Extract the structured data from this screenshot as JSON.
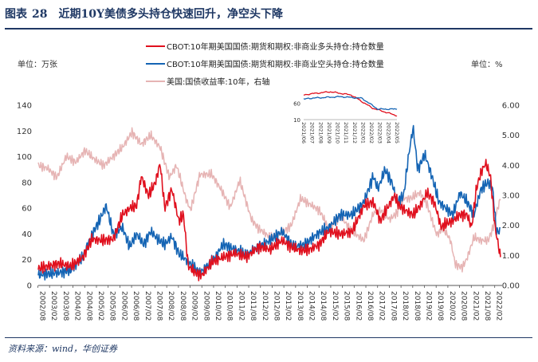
{
  "header": {
    "fig_label": "图表",
    "fig_number": "28",
    "title": "近期10Y美债多头持仓快速回升，净空头下降"
  },
  "footer": {
    "source": "资料来源：wind，华创证券"
  },
  "chart_data": {
    "type": "line",
    "left_unit": "单位：万张",
    "right_unit": "单位：%",
    "ylim_left": [
      0,
      140
    ],
    "ylim_right": [
      0,
      6
    ],
    "yticks_left": [
      "0",
      "20",
      "40",
      "60",
      "80",
      "100",
      "120",
      "140"
    ],
    "yticks_right": [
      "0.00",
      "1.00",
      "2.00",
      "3.00",
      "4.00",
      "5.00",
      "6.00"
    ],
    "xticks": [
      "2002/08",
      "2003/02",
      "2003/08",
      "2004/02",
      "2004/08",
      "2005/02",
      "2005/08",
      "2006/02",
      "2006/08",
      "2007/02",
      "2007/08",
      "2008/02",
      "2008/08",
      "2009/02",
      "2009/08",
      "2010/02",
      "2010/08",
      "2011/02",
      "2011/08",
      "2012/02",
      "2012/08",
      "2013/02",
      "2013/08",
      "2014/02",
      "2014/08",
      "2015/02",
      "2015/08",
      "2016/02",
      "2016/08",
      "2017/02",
      "2017/08",
      "2018/02",
      "2018/08",
      "2019/02",
      "2019/08",
      "2020/02",
      "2020/08",
      "2021/02",
      "2021/08",
      "2022/02"
    ],
    "colors": {
      "long": "#e0101e",
      "short": "#1464b4",
      "yield": "#e6b4b4"
    },
    "series": [
      {
        "name": "CBOT:10年期美国国债:期货和期权:非商业多头持仓:持仓数量",
        "axis": "left",
        "color": "long",
        "x": [
          2002.6,
          2003.0,
          2003.5,
          2004.0,
          2004.5,
          2004.9,
          2005.3,
          2005.8,
          2006.2,
          2006.5,
          2006.8,
          2007.0,
          2007.3,
          2007.6,
          2007.8,
          2008.0,
          2008.3,
          2008.6,
          2008.8,
          2009.0,
          2009.3,
          2009.6,
          2010.0,
          2010.5,
          2011.0,
          2011.5,
          2012.0,
          2012.5,
          2013.0,
          2013.4,
          2013.8,
          2014.2,
          2014.6,
          2015.0,
          2015.5,
          2016.0,
          2016.5,
          2016.9,
          2017.2,
          2017.5,
          2017.8,
          2018.0,
          2018.3,
          2018.6,
          2018.9,
          2019.2,
          2019.5,
          2019.8,
          2020.0,
          2020.3,
          2020.6,
          2020.9,
          2021.1,
          2021.3,
          2021.5,
          2021.7,
          2021.9,
          2022.1,
          2022.25,
          2022.33
        ],
        "values": [
          13,
          15,
          17,
          15,
          22,
          36,
          35,
          36,
          55,
          60,
          62,
          85,
          70,
          80,
          95,
          60,
          75,
          50,
          55,
          15,
          10,
          8,
          18,
          22,
          25,
          22,
          30,
          28,
          35,
          30,
          27,
          28,
          32,
          42,
          40,
          42,
          62,
          65,
          50,
          60,
          70,
          62,
          58,
          55,
          62,
          72,
          65,
          45,
          48,
          50,
          55,
          55,
          45,
          75,
          88,
          95,
          85,
          45,
          30,
          22
        ]
      },
      {
        "name": "CBOT:10年期美国国债:期货和期权:非商业空头持仓:持仓数量",
        "axis": "left",
        "color": "short",
        "x": [
          2002.6,
          2003.0,
          2003.5,
          2004.0,
          2004.5,
          2004.9,
          2005.2,
          2005.5,
          2005.8,
          2006.2,
          2006.5,
          2006.8,
          2007.1,
          2007.4,
          2007.7,
          2008.0,
          2008.3,
          2008.6,
          2008.9,
          2009.2,
          2009.5,
          2010.0,
          2010.5,
          2011.0,
          2011.5,
          2012.0,
          2012.5,
          2013.0,
          2013.5,
          2014.0,
          2014.5,
          2015.0,
          2015.5,
          2016.0,
          2016.5,
          2016.9,
          2017.1,
          2017.4,
          2017.7,
          2017.9,
          2018.2,
          2018.4,
          2018.6,
          2018.8,
          2019.1,
          2019.4,
          2019.7,
          2020.0,
          2020.3,
          2020.6,
          2020.9,
          2021.2,
          2021.5,
          2021.8,
          2022.0,
          2022.15,
          2022.3
        ],
        "values": [
          8,
          9,
          10,
          12,
          22,
          40,
          50,
          62,
          40,
          45,
          30,
          40,
          32,
          42,
          36,
          32,
          38,
          25,
          20,
          15,
          10,
          18,
          32,
          28,
          24,
          30,
          35,
          42,
          30,
          32,
          40,
          45,
          55,
          55,
          65,
          85,
          75,
          90,
          80,
          65,
          70,
          100,
          123,
          90,
          102,
          85,
          65,
          60,
          55,
          72,
          65,
          55,
          75,
          80,
          75,
          42,
          42
        ]
      },
      {
        "name": "美国:国债收益率:10年，右轴",
        "axis": "right",
        "color": "yield",
        "x": [
          2002.6,
          2003.0,
          2003.4,
          2003.8,
          2004.2,
          2004.6,
          2005.0,
          2005.4,
          2005.8,
          2006.2,
          2006.6,
          2007.0,
          2007.4,
          2007.8,
          2008.2,
          2008.5,
          2008.9,
          2009.1,
          2009.5,
          2010.0,
          2010.4,
          2010.8,
          2011.2,
          2011.7,
          2012.0,
          2012.5,
          2012.9,
          2013.4,
          2013.8,
          2014.2,
          2014.6,
          2015.0,
          2015.5,
          2016.0,
          2016.5,
          2016.9,
          2017.2,
          2017.6,
          2017.9,
          2018.2,
          2018.5,
          2018.9,
          2019.2,
          2019.6,
          2019.9,
          2020.2,
          2020.4,
          2020.7,
          2020.9,
          2021.2,
          2021.5,
          2021.8,
          2022.0,
          2022.15,
          2022.33
        ],
        "values": [
          4.0,
          3.9,
          3.6,
          4.3,
          4.1,
          4.5,
          4.2,
          4.0,
          4.3,
          4.6,
          5.1,
          4.7,
          5.0,
          4.6,
          3.6,
          4.0,
          2.9,
          2.5,
          3.7,
          3.7,
          3.2,
          2.6,
          3.5,
          2.2,
          1.9,
          1.6,
          1.7,
          2.0,
          2.9,
          2.7,
          2.5,
          1.9,
          2.3,
          1.8,
          1.5,
          2.4,
          2.5,
          2.2,
          2.4,
          2.9,
          2.9,
          3.1,
          2.7,
          1.7,
          1.9,
          1.5,
          0.7,
          0.6,
          0.9,
          1.6,
          1.5,
          1.5,
          1.9,
          2.4,
          2.9
        ]
      }
    ]
  }
}
